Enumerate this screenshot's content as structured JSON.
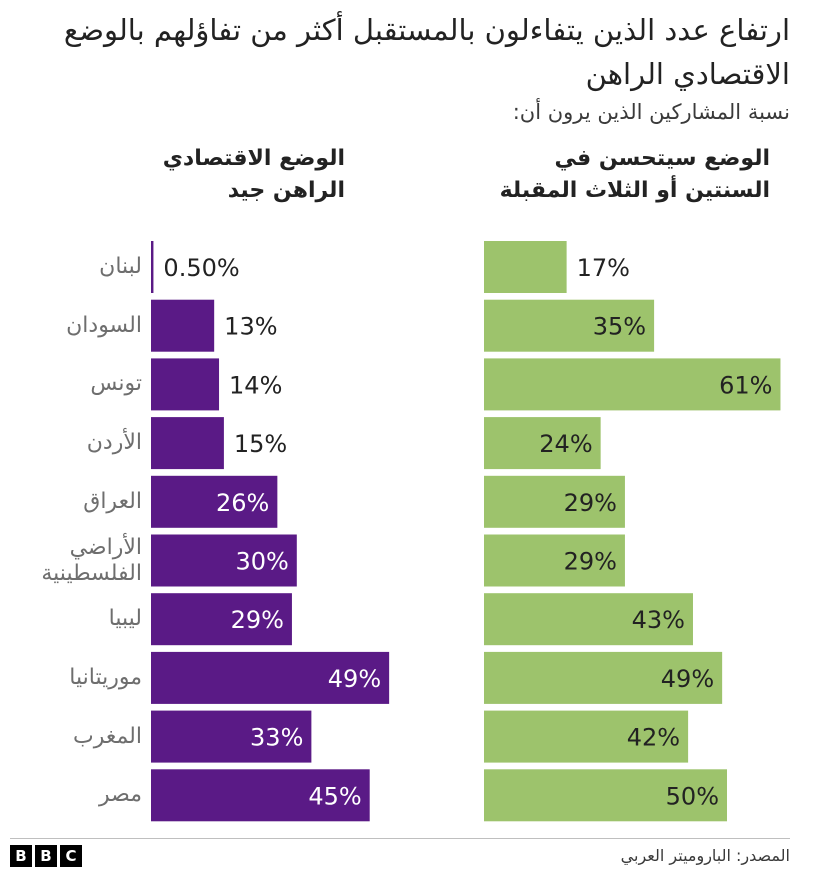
{
  "title": "ارتفاع عدد الذين يتفاءلون بالمستقبل أكثر من تفاؤلهم بالوضع الاقتصادي الراهن",
  "subtitle": "نسبة المشاركين الذين يرون أن:",
  "source": "المصدر: الباروميتر العربي",
  "logo": [
    "B",
    "B",
    "C"
  ],
  "colors": {
    "purple": "#5a1a86",
    "green": "#9dc36c"
  },
  "chart_data": {
    "type": "bar",
    "orientation": "horizontal",
    "categories": [
      "لبنان",
      "السودان",
      "تونس",
      "الأردن",
      "العراق",
      "الأراضي الفلسطينية",
      "ليبيا",
      "موريتانيا",
      "المغرب",
      "مصر"
    ],
    "series": [
      {
        "name": "الوضع الاقتصادي الراهن جيد",
        "values": [
          0.5,
          13,
          14,
          15,
          26,
          30,
          29,
          49,
          33,
          45
        ],
        "labels": [
          "0.50%",
          "13%",
          "14%",
          "15%",
          "26%",
          "30%",
          "29%",
          "49%",
          "33%",
          "45%"
        ],
        "color": "#5a1a86"
      },
      {
        "name": "الوضع سيتحسن في السنتين أو الثلاث المقبلة",
        "values": [
          17,
          35,
          61,
          24,
          29,
          29,
          43,
          49,
          42,
          50
        ],
        "labels": [
          "17%",
          "35%",
          "61%",
          "24%",
          "29%",
          "29%",
          "43%",
          "49%",
          "42%",
          "50%"
        ],
        "color": "#9dc36c"
      }
    ]
  }
}
